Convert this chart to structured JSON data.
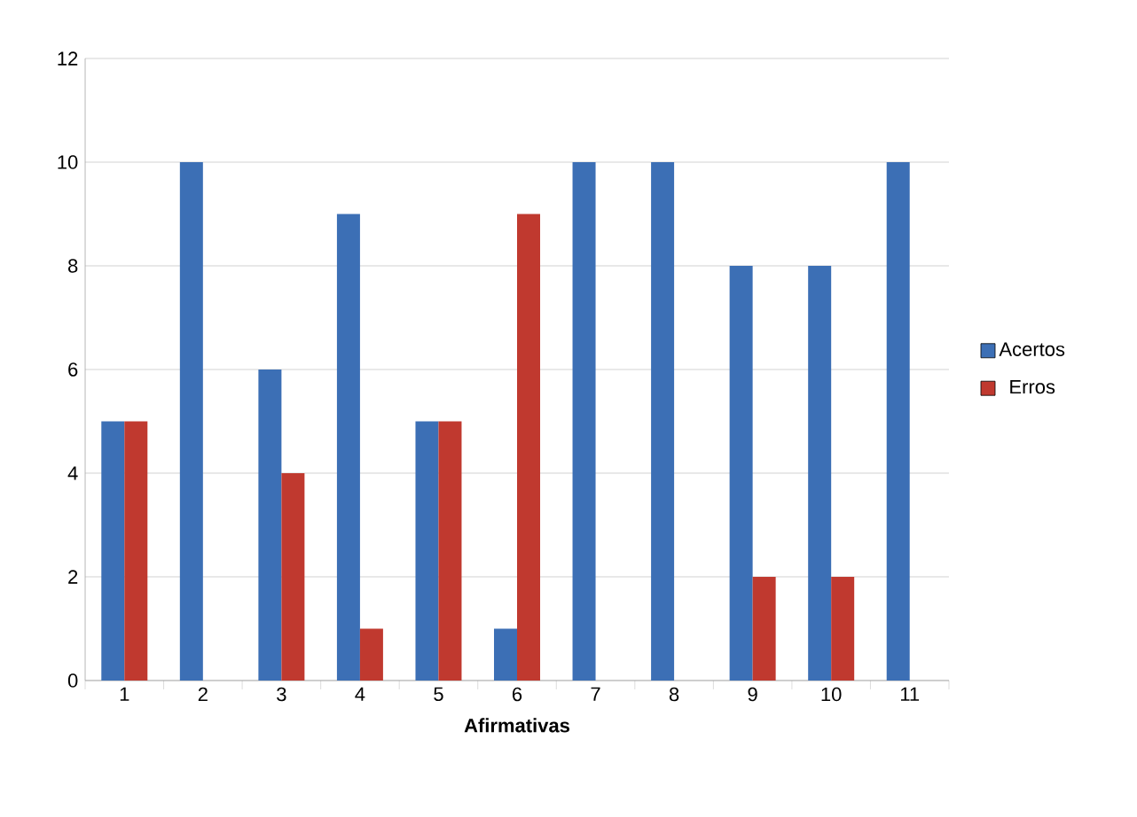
{
  "chart_data": {
    "type": "bar",
    "xlabel": "Afirmativas",
    "categories": [
      "1",
      "2",
      "3",
      "4",
      "5",
      "6",
      "7",
      "8",
      "9",
      "10",
      "11"
    ],
    "series": [
      {
        "name": "Acertos",
        "color": "#3c6fb5",
        "values": [
          5,
          10,
          6,
          9,
          5,
          1,
          10,
          10,
          8,
          8,
          10
        ]
      },
      {
        "name": "Erros",
        "color": "#c0392f",
        "values": [
          5,
          0,
          4,
          1,
          5,
          9,
          0,
          0,
          2,
          2,
          0
        ]
      }
    ],
    "ylim": [
      0,
      12
    ],
    "yticks": [
      0,
      2,
      4,
      6,
      8,
      10,
      12
    ],
    "grid": "y",
    "legend": "right"
  }
}
